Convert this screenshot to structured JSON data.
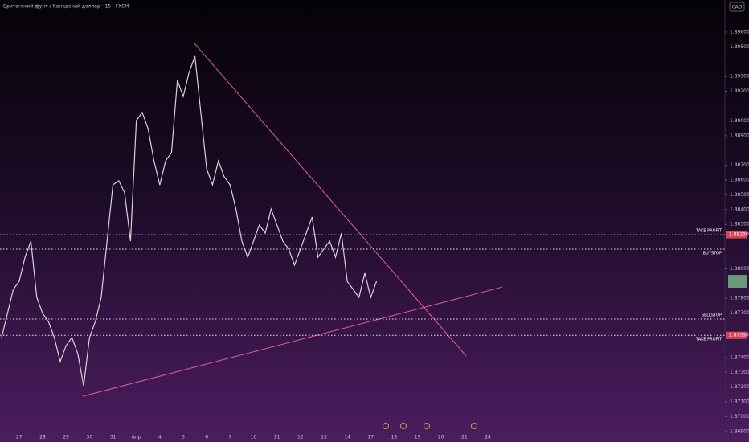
{
  "chart_data": {
    "type": "line",
    "title": "Британский фунт / Канадский доллар · 15 · FXCM",
    "currency": "CAD",
    "categories": [
      null,
      null,
      null,
      "27",
      null,
      null,
      null,
      "28",
      null,
      null,
      null,
      "29",
      null,
      null,
      null,
      "30",
      null,
      null,
      null,
      "31",
      null,
      null,
      null,
      "Апр",
      null,
      null,
      null,
      "4",
      null,
      null,
      null,
      "5",
      null,
      null,
      null,
      "6",
      null,
      null,
      null,
      "7",
      null,
      null,
      null,
      "10",
      null,
      null,
      null,
      "11",
      null,
      null,
      null,
      "12",
      null,
      null,
      null,
      "13",
      null,
      null,
      null,
      "14",
      null,
      null,
      null,
      "17",
      null,
      null,
      null,
      "18",
      null,
      null,
      null,
      "19",
      null,
      null,
      null,
      "20",
      null,
      null,
      null,
      "21",
      null,
      null,
      null,
      "24",
      null,
      null,
      null,
      null
    ],
    "series": [
      {
        "color": "#d6d2d9",
        "values": [
          1.87535,
          1.87698,
          1.87861,
          1.87915,
          1.88078,
          1.88187,
          1.87807,
          1.87698,
          1.87643,
          1.87535,
          1.87372,
          1.8748,
          1.87535,
          1.87426,
          1.87209,
          1.87535,
          1.87643,
          1.87807,
          1.88187,
          1.88567,
          1.88595,
          1.88513,
          1.88187,
          1.89002,
          1.89057,
          1.88948,
          1.8873,
          1.88567,
          1.8873,
          1.88785,
          1.89274,
          1.89165,
          1.89328,
          1.89437,
          1.89057,
          1.88676,
          1.88567,
          1.8873,
          1.88622,
          1.88567,
          1.88404,
          1.88187,
          1.88078,
          1.88187,
          1.88296,
          1.88241,
          1.88404,
          1.88296,
          1.88187,
          1.88133,
          1.88024,
          1.88133,
          1.88241,
          1.8835,
          1.88078,
          1.88133,
          1.88187,
          1.88078,
          1.88241,
          1.87915,
          1.87861,
          1.87807,
          1.8797,
          1.87807,
          1.87915,
          null,
          null,
          null,
          null,
          null,
          null,
          null,
          null,
          null,
          null,
          null,
          null,
          null,
          null,
          null,
          null,
          null,
          null,
          null,
          null,
          null,
          null,
          null
        ]
      }
    ],
    "ylim": [
      1.86883,
      1.89817
    ],
    "yticks": [
      {
        "value": 1.896,
        "label": "1.89600"
      },
      {
        "value": 1.895,
        "label": "1.89500"
      },
      {
        "value": 1.893,
        "label": "1.89300"
      },
      {
        "value": 1.892,
        "label": "1.89200"
      },
      {
        "value": 1.89,
        "label": "1.89000"
      },
      {
        "value": 1.889,
        "label": "1.88900"
      },
      {
        "value": 1.887,
        "label": "1.88700"
      },
      {
        "value": 1.886,
        "label": "1.88600"
      },
      {
        "value": 1.885,
        "label": "1.88500"
      },
      {
        "value": 1.884,
        "label": "1.88400"
      },
      {
        "value": 1.883,
        "label": "1.88300"
      },
      {
        "value": 1.88,
        "label": "1.88000"
      },
      {
        "value": 1.878,
        "label": "1.87800"
      },
      {
        "value": 1.877,
        "label": "1.87700"
      },
      {
        "value": 1.874,
        "label": "1.87400"
      },
      {
        "value": 1.873,
        "label": "1.87300"
      },
      {
        "value": 1.872,
        "label": "1.87200"
      },
      {
        "value": 1.871,
        "label": "1.87100"
      },
      {
        "value": 1.87,
        "label": "1.87000"
      },
      {
        "value": 1.869,
        "label": "1.86900"
      }
    ],
    "grid": false,
    "trendlines": [
      {
        "color": "#e0609a",
        "x": [
          32.8,
          79.3
        ],
        "y": [
          1.89529,
          1.8741
        ]
      },
      {
        "color": "#e0609a",
        "x": [
          13.85,
          85.5
        ],
        "y": [
          1.87138,
          1.87877
        ]
      }
    ],
    "levels": [
      {
        "label": "TAKE PROFIT",
        "value": 1.8823,
        "value_label": "1.88230",
        "color": "#d9435a"
      },
      {
        "label": "BUYSTOP",
        "value": 1.88133
      },
      {
        "label": "SELLSTOP",
        "value": 1.8766
      },
      {
        "label": "TAKE PROFIT",
        "value": 1.8755,
        "value_label": "1.87550",
        "color": "#d9435a"
      }
    ]
  }
}
